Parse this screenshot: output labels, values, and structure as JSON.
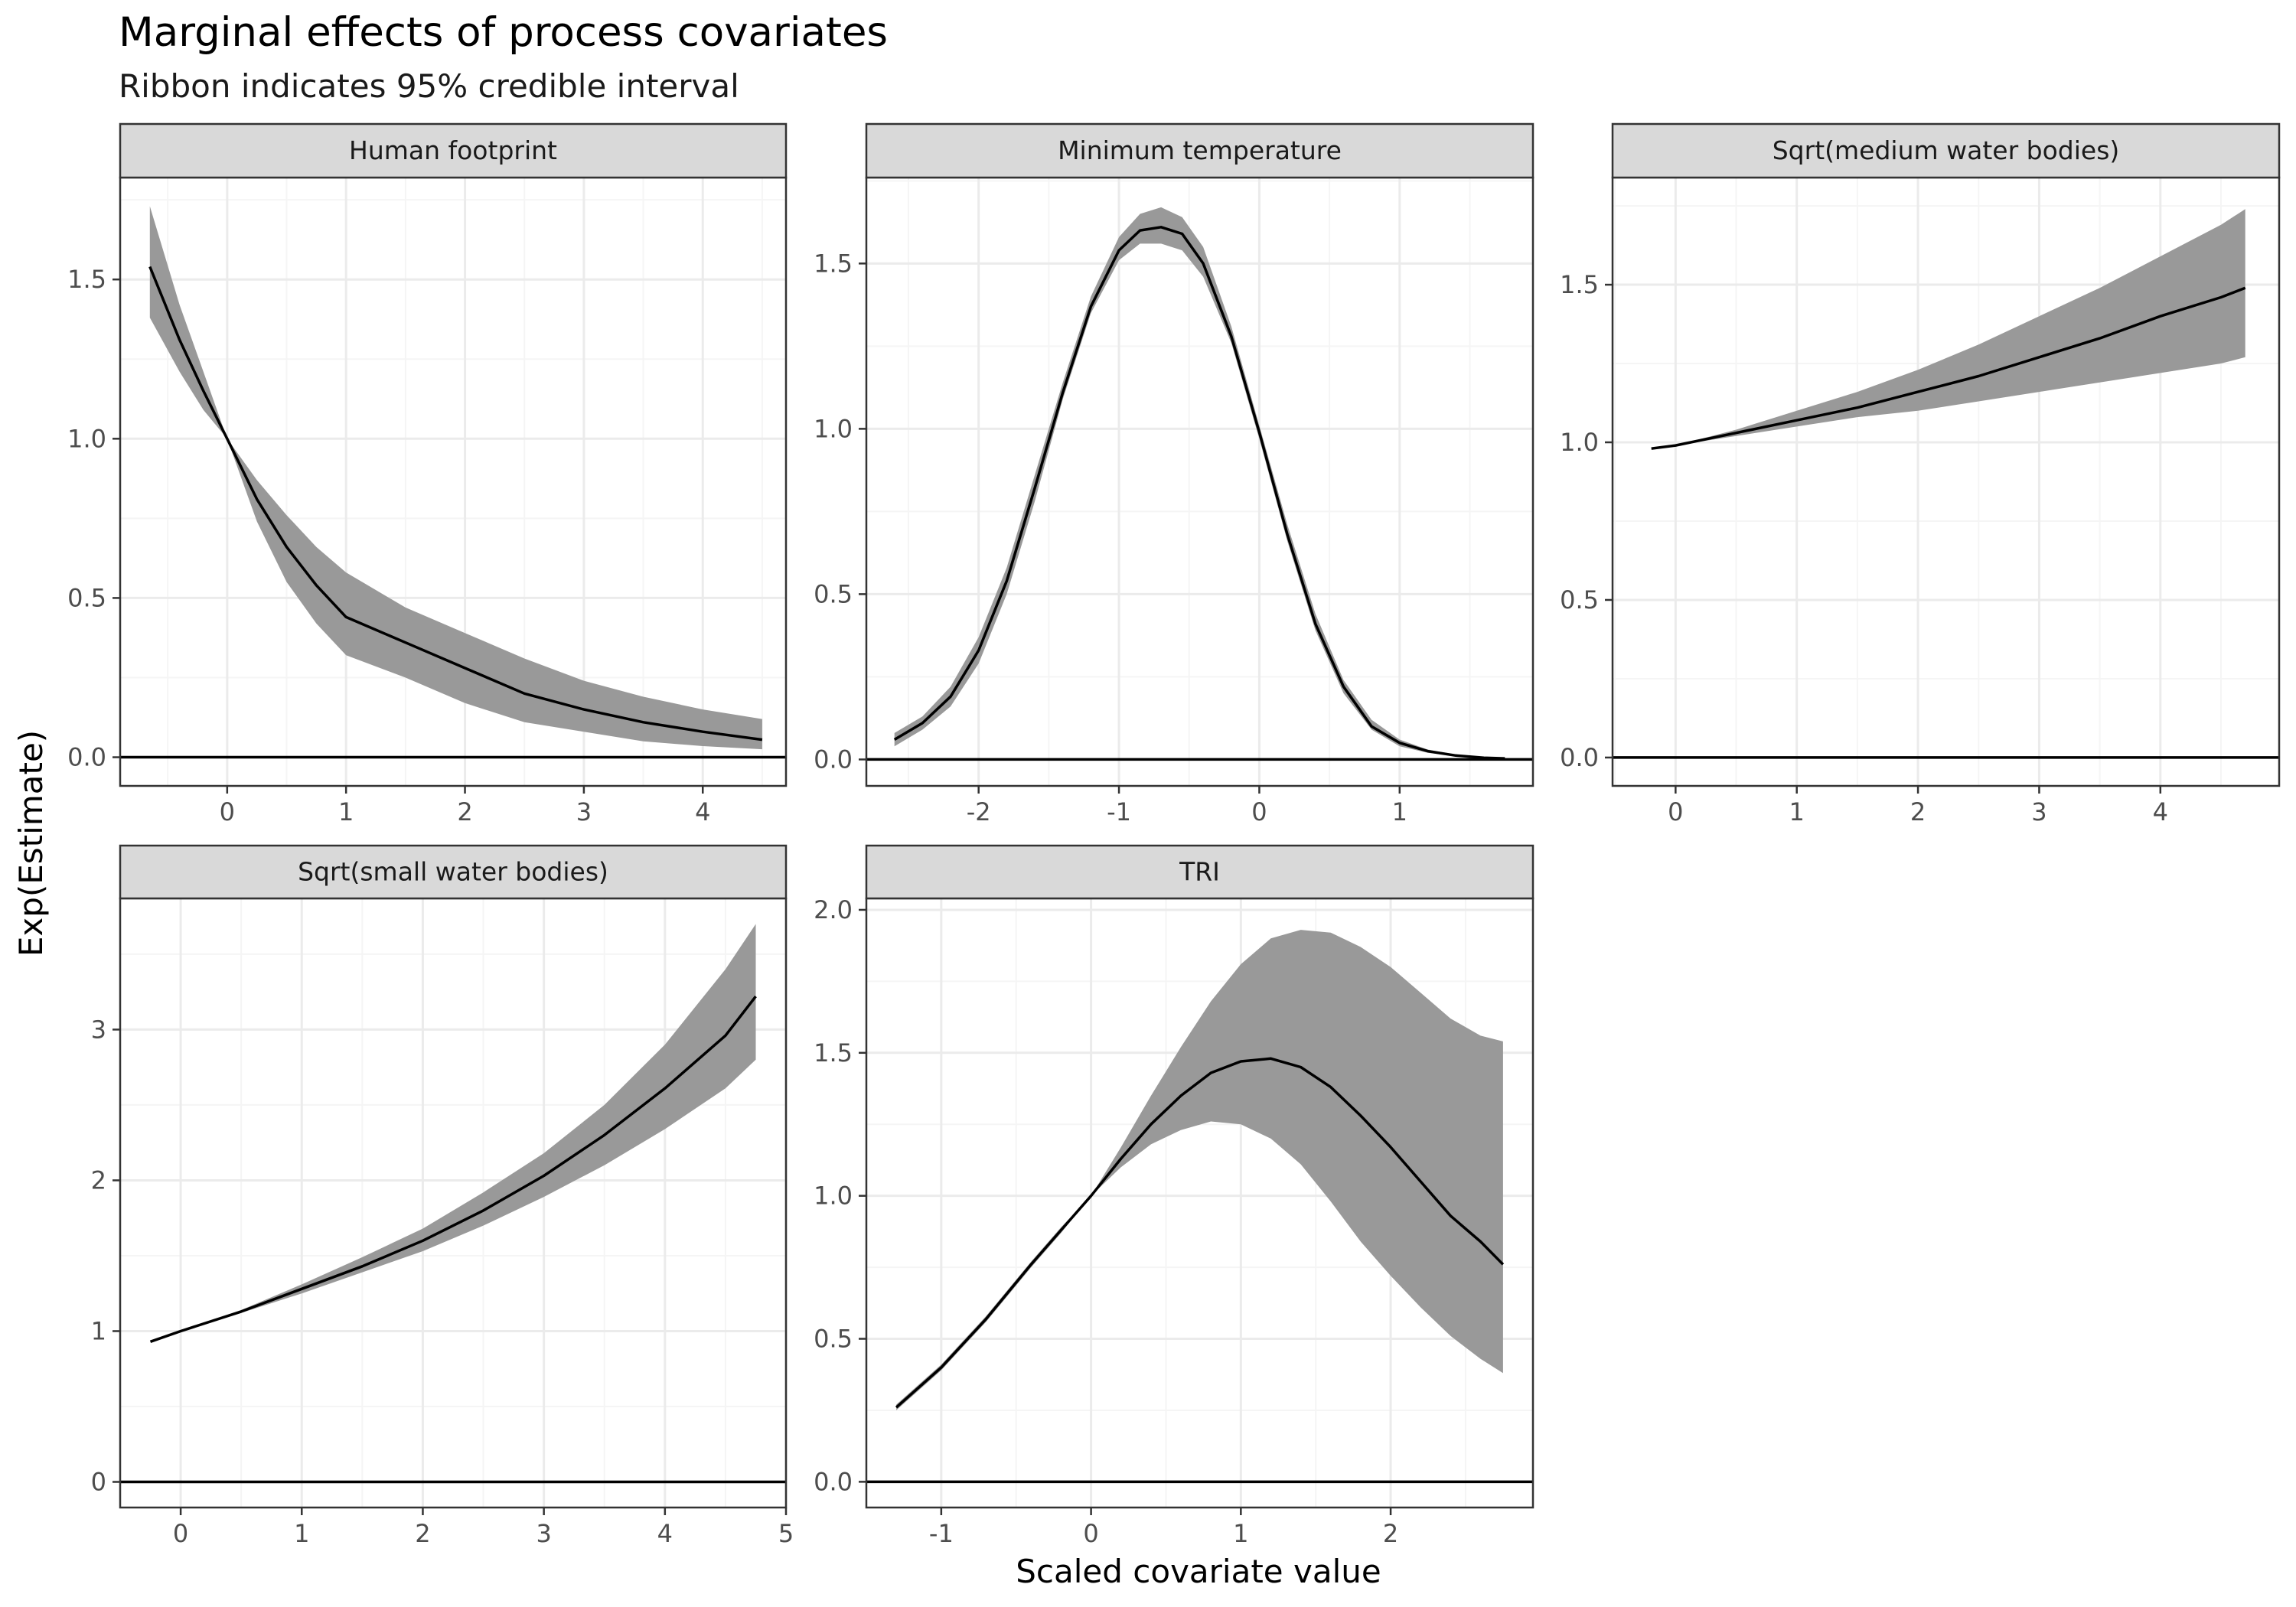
{
  "figure": {
    "title": "Marginal effects of process covariates",
    "subtitle": "Ribbon indicates 95% credible interval",
    "xlabel": "Scaled covariate value",
    "ylabel": "Exp(Estimate)"
  },
  "colors": {
    "background": "#ffffff",
    "panel_border": "#333333",
    "strip_fill": "#d9d9d9",
    "grid_major": "#ebebeb",
    "grid_minor": "#f5f5f5",
    "ribbon": "#999999",
    "line": "#000000",
    "tick_label": "#4d4d4d"
  },
  "chart_data": [
    {
      "type": "line",
      "panel": "Human footprint",
      "xlim": [
        -0.9,
        4.7
      ],
      "ylim": [
        -0.09,
        1.82
      ],
      "x_ticks": [
        0,
        1,
        2,
        3,
        4
      ],
      "y_ticks": [
        "0.0",
        "0.5",
        "1.0",
        "1.5"
      ],
      "hline": 0,
      "series": [
        {
          "x": [
            -0.65,
            -0.4,
            -0.2,
            0,
            0.25,
            0.5,
            0.75,
            1,
            1.5,
            2,
            2.5,
            3,
            3.5,
            4,
            4.5
          ],
          "estimate": [
            1.54,
            1.31,
            1.15,
            1.0,
            0.81,
            0.66,
            0.54,
            0.44,
            0.36,
            0.28,
            0.2,
            0.15,
            0.11,
            0.08,
            0.055
          ],
          "lower": [
            1.38,
            1.21,
            1.09,
            1.0,
            0.74,
            0.55,
            0.42,
            0.32,
            0.25,
            0.17,
            0.11,
            0.08,
            0.05,
            0.035,
            0.025
          ],
          "upper": [
            1.73,
            1.42,
            1.21,
            1.0,
            0.87,
            0.76,
            0.66,
            0.58,
            0.47,
            0.39,
            0.31,
            0.24,
            0.19,
            0.15,
            0.12
          ]
        }
      ]
    },
    {
      "type": "line",
      "panel": "Minimum temperature",
      "xlim": [
        -2.8,
        1.95
      ],
      "ylim": [
        -0.08,
        1.76
      ],
      "x_ticks": [
        -2,
        -1,
        0,
        1
      ],
      "y_ticks": [
        "0.0",
        "0.5",
        "1.0",
        "1.5"
      ],
      "hline": 0,
      "series": [
        {
          "x": [
            -2.6,
            -2.4,
            -2.2,
            -2.0,
            -1.8,
            -1.6,
            -1.4,
            -1.2,
            -1.0,
            -0.85,
            -0.7,
            -0.55,
            -0.4,
            -0.2,
            0.0,
            0.2,
            0.4,
            0.6,
            0.8,
            1.0,
            1.2,
            1.4,
            1.6,
            1.75
          ],
          "estimate": [
            0.06,
            0.11,
            0.19,
            0.33,
            0.54,
            0.82,
            1.11,
            1.37,
            1.54,
            1.6,
            1.61,
            1.59,
            1.5,
            1.28,
            0.99,
            0.68,
            0.41,
            0.22,
            0.1,
            0.05,
            0.025,
            0.012,
            0.005,
            0.003
          ],
          "lower": [
            0.04,
            0.09,
            0.16,
            0.29,
            0.5,
            0.78,
            1.09,
            1.35,
            1.51,
            1.56,
            1.56,
            1.54,
            1.46,
            1.26,
            0.97,
            0.66,
            0.39,
            0.2,
            0.09,
            0.04,
            0.02,
            0.01,
            0.004,
            0.002
          ],
          "upper": [
            0.08,
            0.13,
            0.22,
            0.37,
            0.58,
            0.86,
            1.14,
            1.4,
            1.58,
            1.65,
            1.67,
            1.64,
            1.55,
            1.31,
            1.01,
            0.71,
            0.44,
            0.24,
            0.12,
            0.06,
            0.03,
            0.015,
            0.007,
            0.004
          ]
        }
      ]
    },
    {
      "type": "line",
      "panel": "Sqrt(medium water bodies)",
      "xlim": [
        -0.52,
        4.98
      ],
      "ylim": [
        -0.09,
        1.84
      ],
      "x_ticks": [
        0,
        1,
        2,
        3,
        4
      ],
      "y_ticks": [
        "0.0",
        "0.5",
        "1.0",
        "1.5"
      ],
      "hline": 0,
      "series": [
        {
          "x": [
            -0.2,
            0.0,
            0.5,
            1.0,
            1.5,
            2.0,
            2.5,
            3.0,
            3.5,
            4.0,
            4.5,
            4.7
          ],
          "estimate": [
            0.98,
            0.99,
            1.03,
            1.07,
            1.11,
            1.16,
            1.21,
            1.27,
            1.33,
            1.4,
            1.46,
            1.49
          ],
          "lower": [
            0.98,
            0.99,
            1.02,
            1.05,
            1.08,
            1.1,
            1.13,
            1.16,
            1.19,
            1.22,
            1.25,
            1.27
          ],
          "upper": [
            0.98,
            0.99,
            1.04,
            1.1,
            1.16,
            1.23,
            1.31,
            1.4,
            1.49,
            1.59,
            1.69,
            1.74
          ]
        }
      ]
    },
    {
      "type": "line",
      "panel": "Sqrt(small water bodies)",
      "xlim": [
        -0.5,
        5.0
      ],
      "ylim": [
        -0.17,
        3.87
      ],
      "x_ticks": [
        0,
        1,
        2,
        3,
        4,
        5
      ],
      "y_ticks": [
        "0",
        "1",
        "2",
        "3"
      ],
      "hline": 0,
      "series": [
        {
          "x": [
            -0.25,
            0.0,
            0.5,
            1.0,
            1.5,
            2.0,
            2.5,
            3.0,
            3.5,
            4.0,
            4.5,
            4.75
          ],
          "estimate": [
            0.93,
            1.0,
            1.13,
            1.28,
            1.43,
            1.6,
            1.8,
            2.03,
            2.3,
            2.61,
            2.96,
            3.22
          ],
          "lower": [
            0.93,
            1.0,
            1.12,
            1.25,
            1.39,
            1.53,
            1.7,
            1.89,
            2.1,
            2.34,
            2.61,
            2.8
          ],
          "upper": [
            0.93,
            1.0,
            1.14,
            1.31,
            1.49,
            1.68,
            1.92,
            2.18,
            2.5,
            2.9,
            3.4,
            3.7
          ]
        }
      ]
    },
    {
      "type": "line",
      "panel": "TRI",
      "xlim": [
        -1.5,
        2.95
      ],
      "ylim": [
        -0.09,
        2.04
      ],
      "x_ticks": [
        -1,
        0,
        1,
        2
      ],
      "y_ticks": [
        "0.0",
        "0.5",
        "1.0",
        "1.5",
        "2.0"
      ],
      "hline": 0,
      "series": [
        {
          "x": [
            -1.3,
            -1.0,
            -0.7,
            -0.4,
            -0.2,
            0.0,
            0.2,
            0.4,
            0.6,
            0.8,
            1.0,
            1.2,
            1.4,
            1.6,
            1.8,
            2.0,
            2.2,
            2.4,
            2.6,
            2.75
          ],
          "estimate": [
            0.26,
            0.4,
            0.57,
            0.76,
            0.88,
            1.0,
            1.13,
            1.25,
            1.35,
            1.43,
            1.47,
            1.48,
            1.45,
            1.38,
            1.28,
            1.17,
            1.05,
            0.93,
            0.84,
            0.76
          ],
          "lower": [
            0.25,
            0.39,
            0.56,
            0.75,
            0.87,
            1.0,
            1.1,
            1.18,
            1.23,
            1.26,
            1.25,
            1.2,
            1.11,
            0.98,
            0.84,
            0.72,
            0.61,
            0.51,
            0.43,
            0.38
          ],
          "upper": [
            0.27,
            0.41,
            0.58,
            0.77,
            0.89,
            1.0,
            1.17,
            1.35,
            1.52,
            1.68,
            1.81,
            1.9,
            1.93,
            1.92,
            1.87,
            1.8,
            1.71,
            1.62,
            1.56,
            1.54
          ]
        }
      ]
    }
  ]
}
